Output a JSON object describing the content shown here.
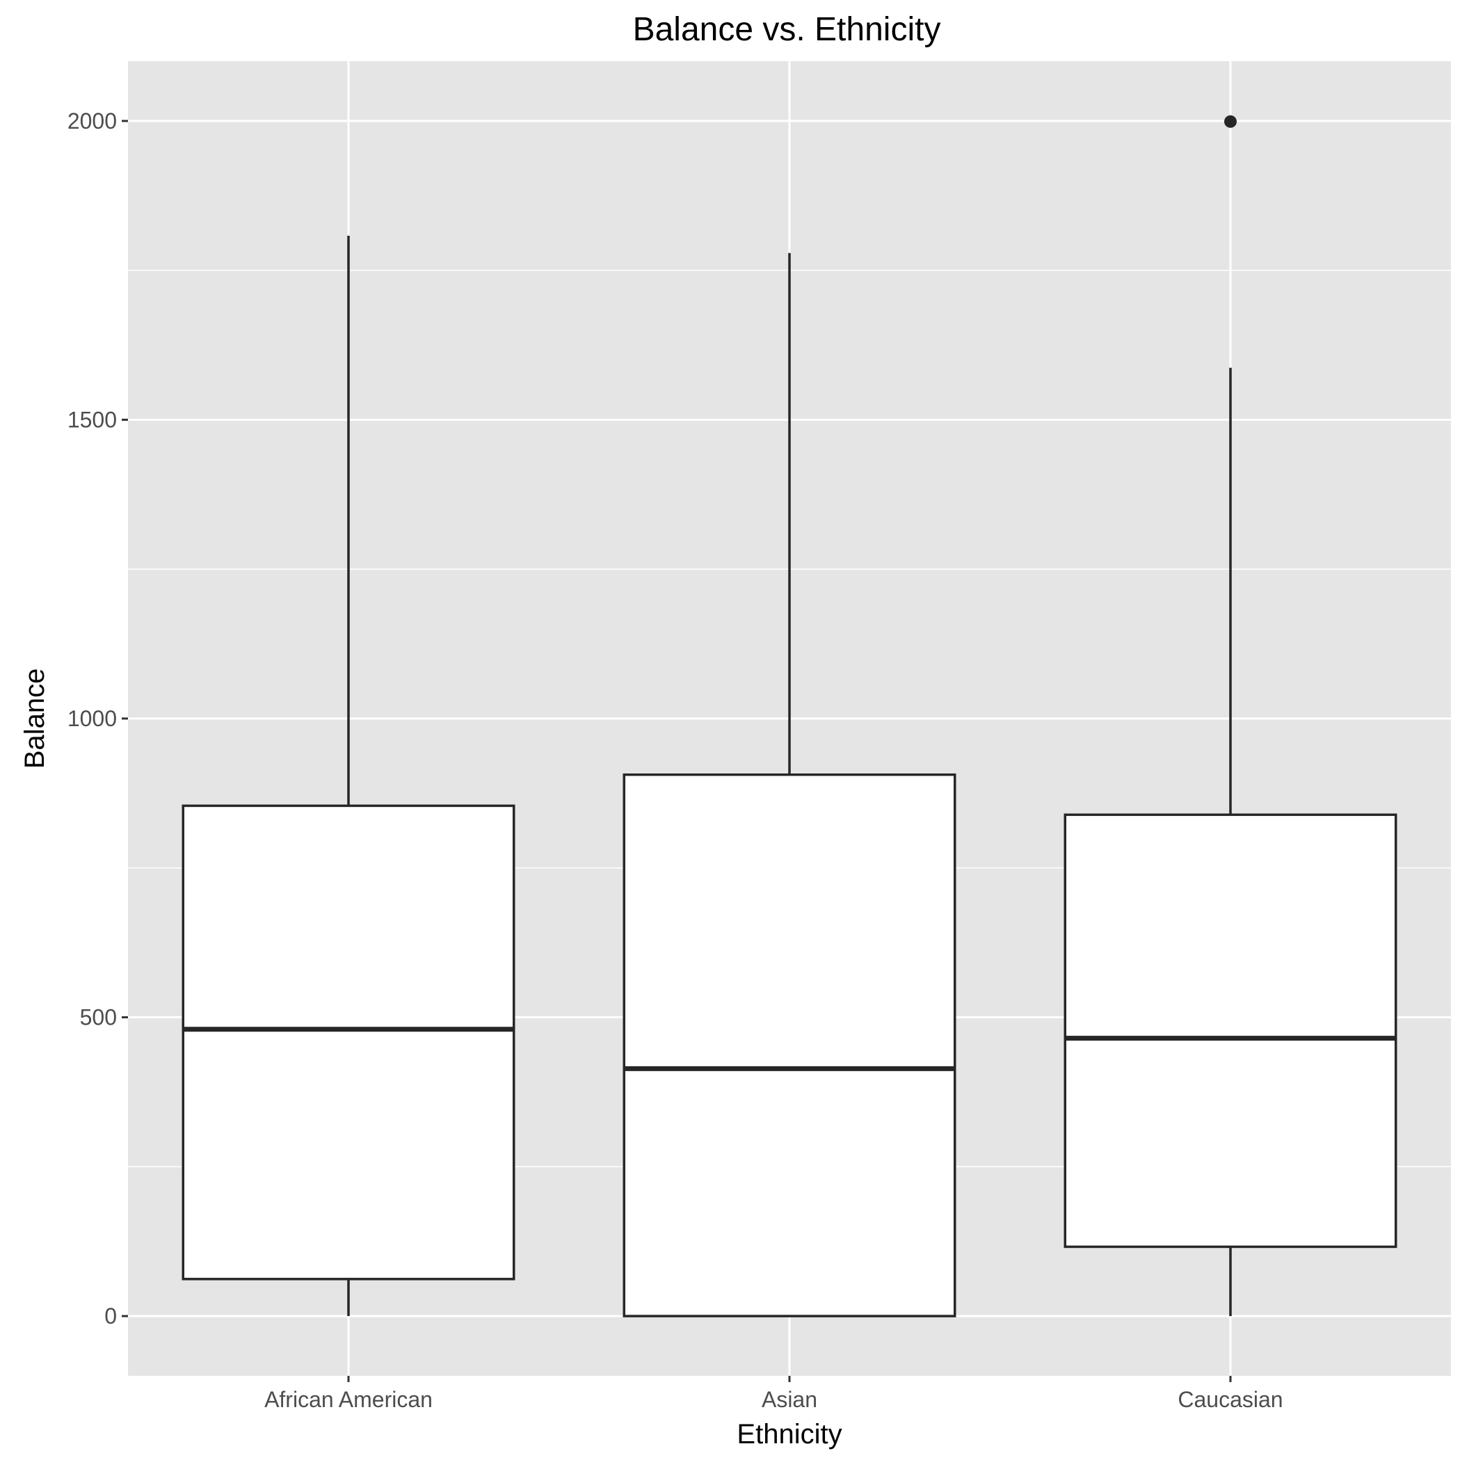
{
  "chart_data": {
    "type": "box",
    "title": "Balance vs. Ethnicity",
    "xlabel": "Ethnicity",
    "ylabel": "Balance",
    "categories": [
      "African American",
      "Asian",
      "Caucasian"
    ],
    "boxes": [
      {
        "category": "African American",
        "min": 0,
        "q1": 62,
        "median": 480,
        "q3": 854,
        "max": 1808,
        "outliers": []
      },
      {
        "category": "Asian",
        "min": 0,
        "q1": 0,
        "median": 414,
        "q3": 906,
        "max": 1779,
        "outliers": []
      },
      {
        "category": "Caucasian",
        "min": 0,
        "q1": 116,
        "median": 465,
        "q3": 839,
        "max": 1587,
        "outliers": [
          1999
        ]
      }
    ],
    "y_ticks": [
      0,
      500,
      1000,
      1500,
      2000
    ],
    "ylim": [
      -100,
      2100
    ],
    "grid": true,
    "legend": "none",
    "colors": {
      "panel": "#e5e5e5",
      "grid": "#ffffff",
      "box_fill": "#ffffff",
      "box_stroke": "#262626",
      "tick_label": "#4d4d4d"
    }
  }
}
